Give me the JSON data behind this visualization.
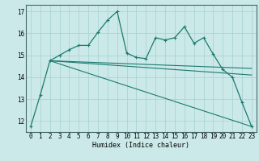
{
  "xlabel": "Humidex (Indice chaleur)",
  "xlim": [
    -0.5,
    23.5
  ],
  "ylim": [
    11.5,
    17.3
  ],
  "xticks": [
    0,
    1,
    2,
    3,
    4,
    5,
    6,
    7,
    8,
    9,
    10,
    11,
    12,
    13,
    14,
    15,
    16,
    17,
    18,
    19,
    20,
    21,
    22,
    23
  ],
  "yticks": [
    12,
    13,
    14,
    15,
    16,
    17
  ],
  "bg_color": "#cce9e9",
  "grid_color": "#aad4d4",
  "line_color": "#1a7a6e",
  "main_x": [
    0,
    1,
    2,
    3,
    4,
    5,
    6,
    7,
    8,
    9,
    10,
    11,
    12,
    13,
    14,
    15,
    16,
    17,
    18,
    19,
    20,
    21,
    22,
    23
  ],
  "main_y": [
    11.75,
    13.2,
    14.75,
    15.0,
    15.25,
    15.45,
    15.45,
    16.05,
    16.6,
    17.0,
    15.1,
    14.9,
    14.85,
    15.8,
    15.7,
    15.8,
    16.3,
    15.55,
    15.8,
    15.05,
    14.35,
    14.0,
    12.85,
    11.75
  ],
  "trend1_x": [
    2,
    23
  ],
  "trend1_y": [
    14.75,
    14.4
  ],
  "trend2_x": [
    2,
    23
  ],
  "trend2_y": [
    14.75,
    14.1
  ],
  "trend3_x": [
    2,
    23
  ],
  "trend3_y": [
    14.75,
    11.75
  ]
}
